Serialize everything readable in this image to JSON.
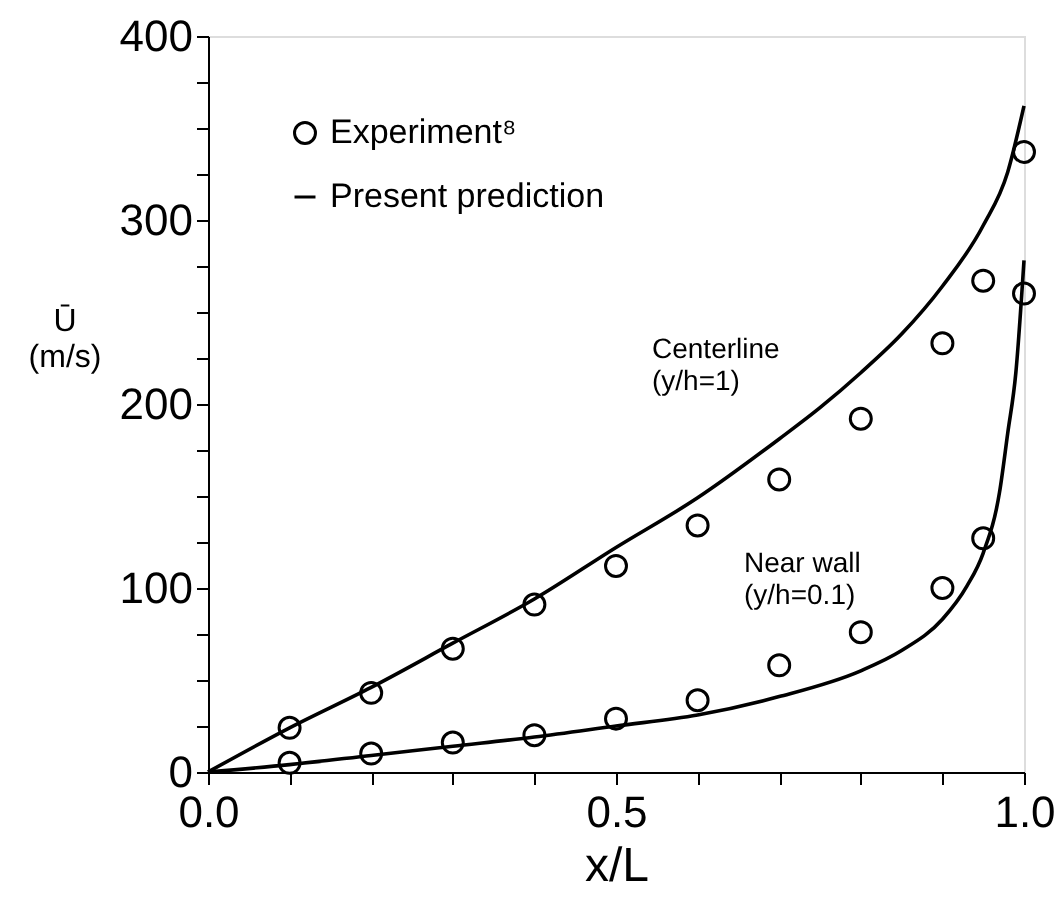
{
  "chart_data": {
    "type": "scatter",
    "xlabel": "x/L",
    "ylabel": "Ū\n(m/s)",
    "xlim": [
      0,
      1.0
    ],
    "ylim": [
      0,
      400
    ],
    "xticks": [
      {
        "value": 0,
        "label": "0.0"
      },
      {
        "value": 0.1,
        "label": null
      },
      {
        "value": 0.2,
        "label": null
      },
      {
        "value": 0.3,
        "label": null
      },
      {
        "value": 0.4,
        "label": null
      },
      {
        "value": 0.5,
        "label": "0.5"
      },
      {
        "value": 0.6,
        "label": null
      },
      {
        "value": 0.7,
        "label": null
      },
      {
        "value": 0.8,
        "label": null
      },
      {
        "value": 0.9,
        "label": null
      },
      {
        "value": 1.0,
        "label": "1.0"
      }
    ],
    "yticks": [
      0,
      {
        "value": 25,
        "label": null
      },
      {
        "value": 50,
        "label": null
      },
      {
        "value": 75,
        "label": null
      },
      100,
      {
        "value": 125,
        "label": null
      },
      {
        "value": 150,
        "label": null
      },
      {
        "value": 175,
        "label": null
      },
      200,
      {
        "value": 225,
        "label": null
      },
      {
        "value": 250,
        "label": null
      },
      {
        "value": 275,
        "label": null
      },
      300,
      {
        "value": 325,
        "label": null
      },
      {
        "value": 350,
        "label": null
      },
      {
        "value": 375,
        "label": null
      },
      400
    ],
    "grid": false,
    "legend": "top left",
    "marker": "circle",
    "series": [
      {
        "name": "Experiment⁸",
        "color": "#000000",
        "x": [
          0.1,
          0.2,
          0.3,
          0.4,
          0.5,
          0.6,
          0.7,
          0.8,
          0.9,
          0.95,
          1.0
        ],
        "values": [
          24,
          43,
          67,
          91,
          112,
          134,
          159,
          192,
          233,
          267,
          337
        ]
      },
      {
        "type": "scatter",
        "color": "#000000",
        "x": [
          0.1,
          0.2,
          0.3,
          0.4,
          0.5,
          0.6,
          0.7,
          0.8,
          0.9,
          0.95,
          1.0
        ],
        "values": [
          5,
          10,
          16,
          20,
          29,
          39,
          58,
          76,
          100,
          127,
          260
        ]
      },
      {
        "name": "Present prediction",
        "type": "line",
        "color": "#000000",
        "marker": "none",
        "line_style": "solid",
        "x": [
          0,
          0.1,
          0.2,
          0.3,
          0.4,
          0.5,
          0.6,
          0.7,
          0.75,
          0.8,
          0.85,
          0.9,
          0.95,
          0.98,
          1.0
        ],
        "values": [
          0,
          24,
          46,
          70,
          94,
          122,
          149,
          181,
          198,
          217,
          238,
          264,
          297,
          326,
          362
        ]
      },
      {
        "type": "line",
        "color": "#000000",
        "marker": "none",
        "line_style": "solid",
        "x": [
          0,
          0.1,
          0.2,
          0.3,
          0.4,
          0.5,
          0.6,
          0.7,
          0.8,
          0.85,
          0.9,
          0.93,
          0.95,
          0.97,
          0.98,
          0.99,
          1.0
        ],
        "values": [
          0,
          4,
          9,
          14,
          19,
          25,
          31,
          41,
          55,
          66,
          83,
          101,
          119,
          152,
          184,
          217,
          278
        ]
      }
    ],
    "annotations": [
      "Centerline\n(y/h=1)",
      "Near wall\n(y/h=0.1)"
    ]
  }
}
